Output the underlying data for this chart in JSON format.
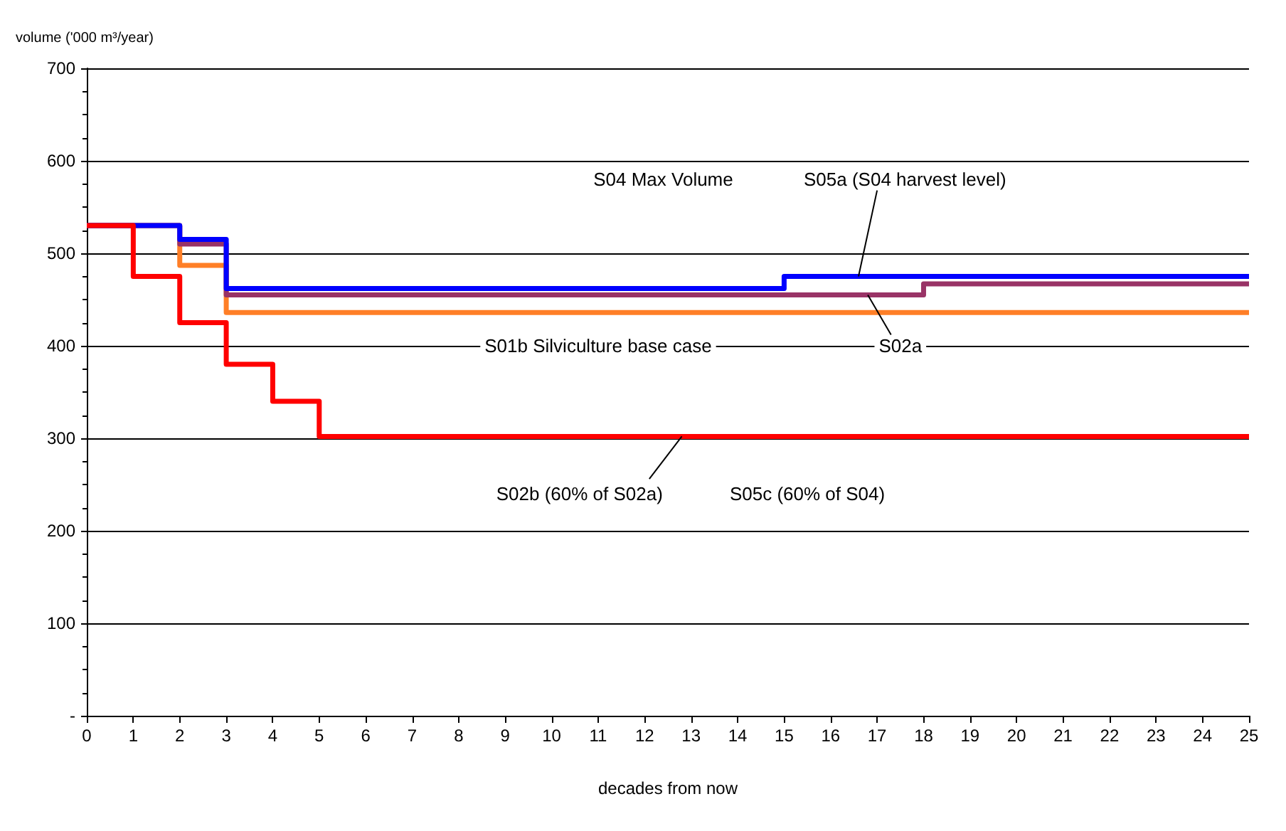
{
  "chart_data": {
    "type": "step",
    "xlabel": "decades from now",
    "ylabel": "volume ('000 m³/year)",
    "x": [
      0,
      1,
      2,
      3,
      4,
      5,
      6,
      7,
      8,
      9,
      10,
      11,
      12,
      13,
      14,
      15,
      16,
      17,
      18,
      19,
      20,
      21,
      22,
      23,
      24,
      25
    ],
    "series": [
      {
        "color": "#ff7f27",
        "values": [
          530,
          530,
          487,
          436,
          436,
          436,
          436,
          436,
          436,
          436,
          436,
          436,
          436,
          436,
          436,
          436,
          436,
          436,
          436,
          436,
          436,
          436,
          436,
          436,
          436,
          436
        ]
      },
      {
        "color": "#993366",
        "values": [
          530,
          530,
          510,
          455,
          455,
          455,
          455,
          455,
          455,
          455,
          455,
          455,
          455,
          455,
          455,
          455,
          455,
          455,
          467,
          467,
          467,
          467,
          467,
          467,
          467,
          467
        ]
      },
      {
        "color": "#0000ff",
        "values": [
          530,
          530,
          515,
          462,
          462,
          462,
          462,
          462,
          462,
          462,
          462,
          462,
          462,
          462,
          462,
          475,
          475,
          475,
          475,
          475,
          475,
          475,
          475,
          475,
          475,
          475
        ]
      },
      {
        "color": "#ff0000",
        "values": [
          530,
          475,
          425,
          380,
          340,
          302,
          302,
          302,
          302,
          302,
          302,
          302,
          302,
          302,
          302,
          302,
          302,
          302,
          302,
          302,
          302,
          302,
          302,
          302,
          302,
          302
        ]
      }
    ],
    "xlim": [
      0,
      25
    ],
    "xticks": [
      0,
      1,
      2,
      3,
      4,
      5,
      6,
      7,
      8,
      9,
      10,
      11,
      12,
      13,
      14,
      15,
      16,
      17,
      18,
      19,
      20,
      21,
      22,
      23,
      24,
      25
    ],
    "ylim": [
      0,
      700
    ],
    "yticks": [
      {
        "value": 0,
        "label": "-"
      },
      100,
      200,
      300,
      400,
      500,
      600,
      700
    ],
    "grid": "y",
    "annotations": [
      "S04 Max Volume",
      {
        "text": "S05a (S04 harvest level)",
        "x": 16.6,
        "y": 475
      },
      "S01b Silviculture base case",
      {
        "text": "S02a",
        "x": 16.8,
        "y": 455
      },
      {
        "text": "S02b (60% of S02a)",
        "x": 12.8,
        "y": 302
      },
      "S05c (60% of S04)"
    ]
  }
}
